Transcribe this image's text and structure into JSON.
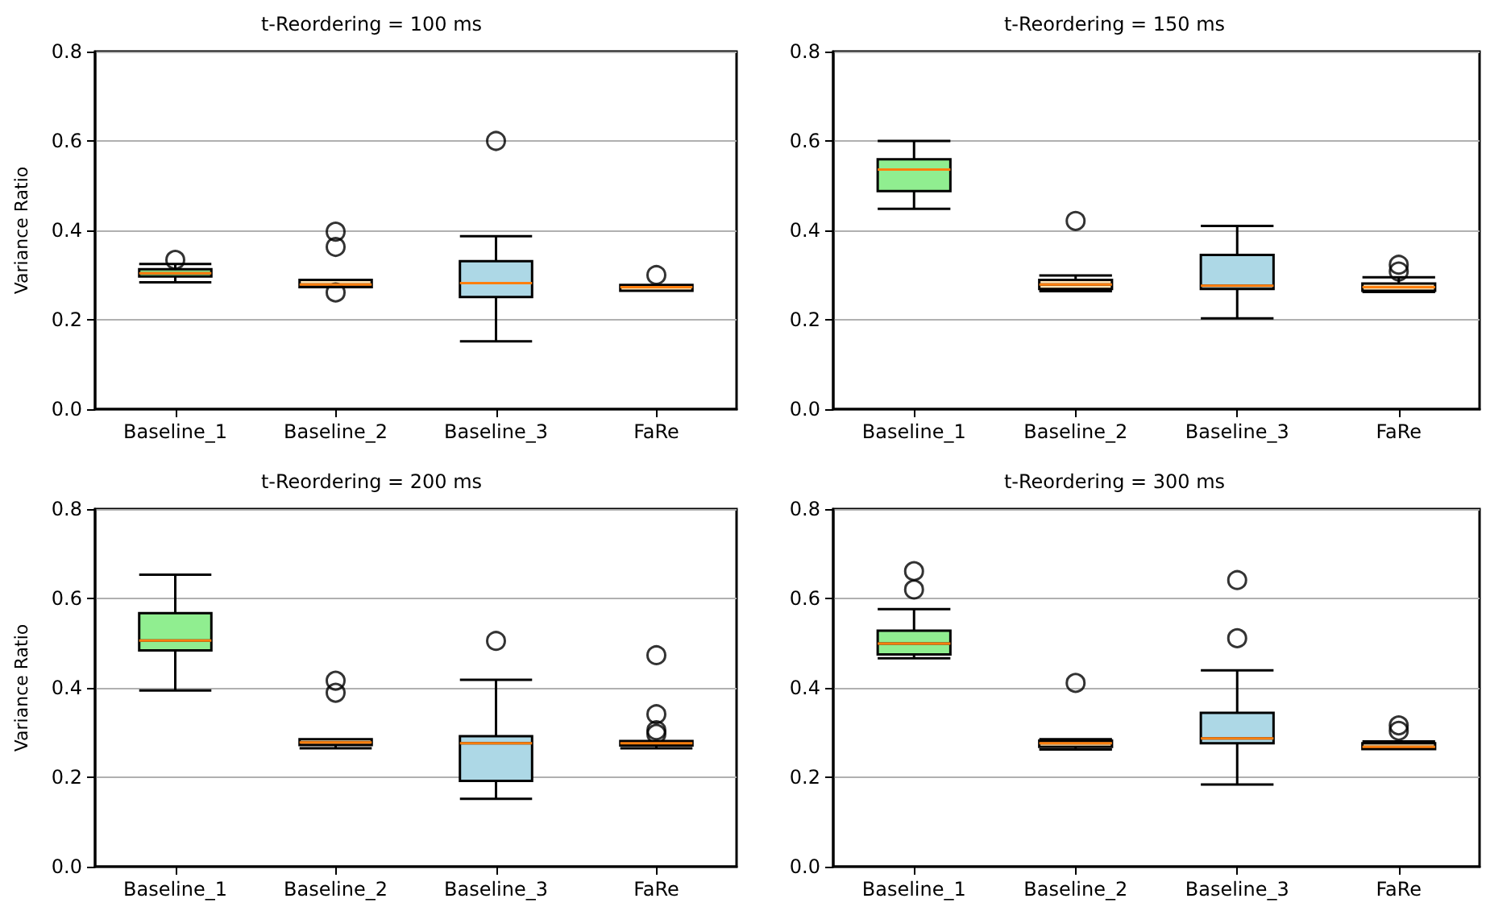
{
  "chart_data": [
    {
      "type": "box",
      "title": "t-Reordering = 100 ms",
      "ylabel": "Variance Ratio",
      "categories": [
        "Baseline_1",
        "Baseline_2",
        "Baseline_3",
        "FaRe"
      ],
      "colors": [
        "#90ee90",
        "#ffe4b5",
        "#add8e6",
        "#ffe4b5"
      ],
      "ylim": [
        0,
        0.8
      ],
      "yticks": [
        {
          "value": 0,
          "label": "0.0"
        },
        {
          "value": 0.2,
          "label": "0.2"
        },
        {
          "value": 0.4,
          "label": "0.4"
        },
        {
          "value": 0.6,
          "label": "0.6"
        },
        {
          "value": 0.8,
          "label": "0.8"
        }
      ],
      "grid": "y",
      "boxes": [
        {
          "low": 0.284,
          "q1": 0.297,
          "median": 0.304,
          "q3": 0.313,
          "high": 0.325,
          "outliers": [
            0.334
          ]
        },
        {
          "low": 0.273,
          "q1": 0.273,
          "median": 0.279,
          "q3": 0.289,
          "high": 0.289,
          "outliers": [
            0.397,
            0.363,
            0.261
          ]
        },
        {
          "low": 0.152,
          "q1": 0.251,
          "median": 0.282,
          "q3": 0.331,
          "high": 0.387,
          "outliers": [
            0.6
          ]
        },
        {
          "low": 0.265,
          "q1": 0.265,
          "median": 0.273,
          "q3": 0.278,
          "high": 0.278,
          "outliers": [
            0.3
          ]
        }
      ]
    },
    {
      "type": "box",
      "title": "t-Reordering = 150 ms",
      "categories": [
        "Baseline_1",
        "Baseline_2",
        "Baseline_3",
        "FaRe"
      ],
      "colors": [
        "#90ee90",
        "#ffe4b5",
        "#add8e6",
        "#ffe4b5"
      ],
      "ylim": [
        0,
        0.8
      ],
      "yticks": [
        {
          "value": 0,
          "label": "0.0"
        },
        {
          "value": 0.2,
          "label": "0.2"
        },
        {
          "value": 0.4,
          "label": "0.4"
        },
        {
          "value": 0.6,
          "label": "0.6"
        },
        {
          "value": 0.8,
          "label": "0.8"
        }
      ],
      "grid": "y",
      "boxes": [
        {
          "low": 0.448,
          "q1": 0.488,
          "median": 0.536,
          "q3": 0.559,
          "high": 0.6
        },
        {
          "low": 0.264,
          "q1": 0.269,
          "median": 0.279,
          "q3": 0.289,
          "high": 0.299,
          "outliers": [
            0.421
          ]
        },
        {
          "low": 0.203,
          "q1": 0.269,
          "median": 0.276,
          "q3": 0.345,
          "high": 0.41
        },
        {
          "low": 0.262,
          "q1": 0.265,
          "median": 0.273,
          "q3": 0.281,
          "high": 0.295,
          "outliers": [
            0.323,
            0.308
          ]
        }
      ]
    },
    {
      "type": "box",
      "title": "t-Reordering = 200 ms",
      "ylabel": "Variance Ratio",
      "categories": [
        "Baseline_1",
        "Baseline_2",
        "Baseline_3",
        "FaRe"
      ],
      "colors": [
        "#90ee90",
        "#ffe4b5",
        "#add8e6",
        "#ffe4b5"
      ],
      "ylim": [
        0,
        0.8
      ],
      "yticks": [
        {
          "value": 0,
          "label": "0.0"
        },
        {
          "value": 0.2,
          "label": "0.2"
        },
        {
          "value": 0.4,
          "label": "0.4"
        },
        {
          "value": 0.6,
          "label": "0.6"
        },
        {
          "value": 0.8,
          "label": "0.8"
        }
      ],
      "grid": "y",
      "boxes": [
        {
          "low": 0.394,
          "q1": 0.484,
          "median": 0.506,
          "q3": 0.567,
          "high": 0.653
        },
        {
          "low": 0.265,
          "q1": 0.272,
          "median": 0.278,
          "q3": 0.285,
          "high": 0.285,
          "outliers": [
            0.416,
            0.389
          ]
        },
        {
          "low": 0.152,
          "q1": 0.192,
          "median": 0.276,
          "q3": 0.292,
          "high": 0.418,
          "outliers": [
            0.505
          ]
        },
        {
          "low": 0.265,
          "q1": 0.271,
          "median": 0.276,
          "q3": 0.281,
          "high": 0.281,
          "outliers": [
            0.473,
            0.341,
            0.305,
            0.297
          ]
        }
      ]
    },
    {
      "type": "box",
      "title": "t-Reordering = 300 ms",
      "categories": [
        "Baseline_1",
        "Baseline_2",
        "Baseline_3",
        "FaRe"
      ],
      "colors": [
        "#90ee90",
        "#ffe4b5",
        "#add8e6",
        "#ffe4b5"
      ],
      "ylim": [
        0,
        0.8
      ],
      "yticks": [
        {
          "value": 0,
          "label": "0.0"
        },
        {
          "value": 0.2,
          "label": "0.2"
        },
        {
          "value": 0.4,
          "label": "0.4"
        },
        {
          "value": 0.6,
          "label": "0.6"
        },
        {
          "value": 0.8,
          "label": "0.8"
        }
      ],
      "grid": "y",
      "boxes": [
        {
          "low": 0.466,
          "q1": 0.475,
          "median": 0.499,
          "q3": 0.528,
          "high": 0.576,
          "outliers": [
            0.661,
            0.62
          ]
        },
        {
          "low": 0.262,
          "q1": 0.268,
          "median": 0.276,
          "q3": 0.282,
          "high": 0.285,
          "outliers": [
            0.411
          ]
        },
        {
          "low": 0.184,
          "q1": 0.276,
          "median": 0.287,
          "q3": 0.344,
          "high": 0.439,
          "outliers": [
            0.641,
            0.511
          ]
        },
        {
          "low": 0.263,
          "q1": 0.263,
          "median": 0.268,
          "q3": 0.276,
          "high": 0.28,
          "outliers": [
            0.316,
            0.304
          ]
        }
      ]
    }
  ]
}
